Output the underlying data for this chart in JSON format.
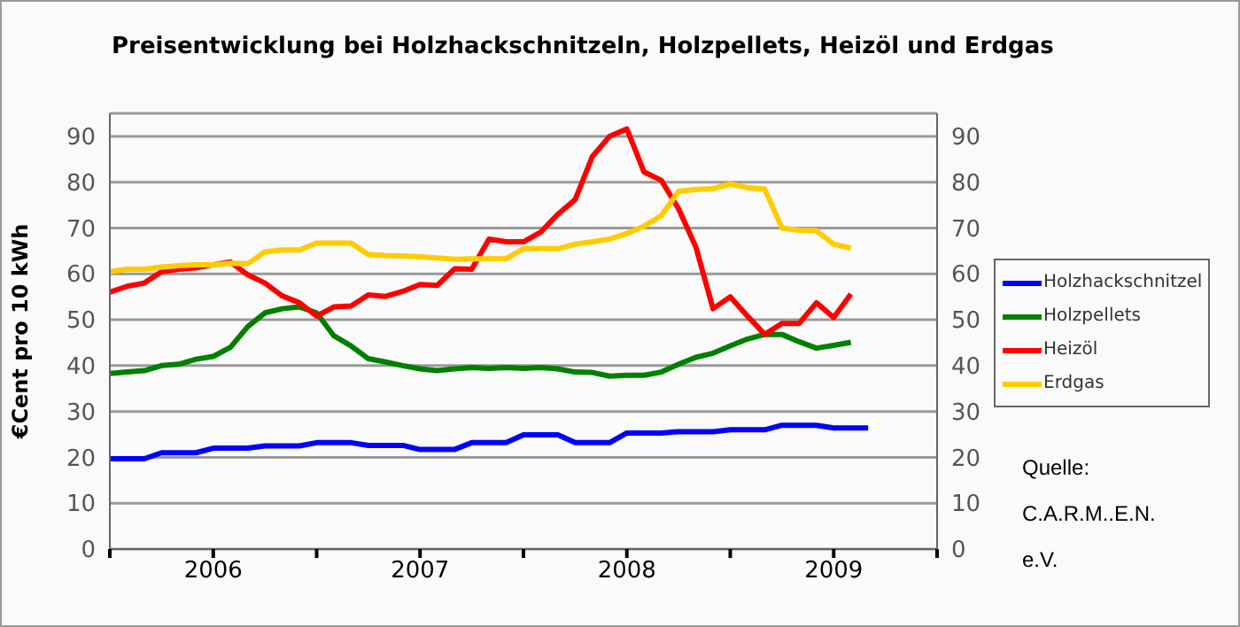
{
  "chart_data": {
    "type": "line",
    "title": "Preisentwicklung bei Holzhackschnitzeln, Holzpellets, Heizöl und Erdgas",
    "ylabel": "€Cent pro 10 kWh",
    "x": [
      "2006-01",
      "2006-02",
      "2006-03",
      "2006-04",
      "2006-05",
      "2006-06",
      "2006-07",
      "2006-08",
      "2006-09",
      "2006-10",
      "2006-11",
      "2006-12",
      "2007-01",
      "2007-02",
      "2007-03",
      "2007-04",
      "2007-05",
      "2007-06",
      "2007-07",
      "2007-08",
      "2007-09",
      "2007-10",
      "2007-11",
      "2007-12",
      "2008-01",
      "2008-02",
      "2008-03",
      "2008-04",
      "2008-05",
      "2008-06",
      "2008-07",
      "2008-08",
      "2008-09",
      "2008-10",
      "2008-11",
      "2008-12",
      "2009-01",
      "2009-02",
      "2009-03",
      "2009-04",
      "2009-05",
      "2009-06",
      "2009-07",
      "2009-08",
      "2009-09"
    ],
    "series": [
      {
        "name": "Holzhackschnitzel",
        "color": "#0000ff",
        "values": [
          19.7,
          19.7,
          19.7,
          21,
          21,
          21,
          22,
          22,
          22,
          22.5,
          22.5,
          22.5,
          23.2,
          23.2,
          23.2,
          22.6,
          22.6,
          22.6,
          21.7,
          21.7,
          21.7,
          23.2,
          23.2,
          23.2,
          24.9,
          24.9,
          24.9,
          23.2,
          23.2,
          23.2,
          25.3,
          25.3,
          25.3,
          25.6,
          25.6,
          25.6,
          26,
          26,
          26,
          27,
          27,
          27,
          26.4,
          26.4,
          26.4
        ]
      },
      {
        "name": "Holzpellets",
        "color": "#008000",
        "values": [
          38.3,
          38.6,
          38.9,
          40,
          40.3,
          41.4,
          42,
          44,
          48.5,
          51.5,
          52.4,
          52.8,
          51.5,
          46.5,
          44.3,
          41.5,
          40.8,
          40,
          39.3,
          38.9,
          39.3,
          39.6,
          39.4,
          39.6,
          39.4,
          39.6,
          39.3,
          38.6,
          38.5,
          37.7,
          37.9,
          37.9,
          38.6,
          40.3,
          41.8,
          42.7,
          44.3,
          45.8,
          46.8,
          46.8,
          45.2,
          43.8,
          44.4,
          45.1,
          null
        ]
      },
      {
        "name": "Heizöl",
        "color": "#ff0000",
        "values": [
          56,
          57.3,
          58,
          60.5,
          61,
          61.3,
          62,
          62.6,
          59.8,
          58,
          55.2,
          53.7,
          50.8,
          52.8,
          53,
          55.4,
          55.1,
          56.2,
          57.7,
          57.5,
          61.1,
          61,
          67.6,
          67,
          67,
          69.1,
          73,
          76.2,
          85.6,
          90,
          91.6,
          82.2,
          80.4,
          74.2,
          65.9,
          52.4,
          55,
          50.8,
          46.8,
          49.2,
          49.2,
          53.7,
          50.5,
          55.6,
          null
        ]
      },
      {
        "name": "Erdgas",
        "color": "#ffcc00",
        "values": [
          60.5,
          61,
          61,
          61.5,
          61.8,
          62,
          62,
          62.3,
          62.2,
          64.8,
          65.2,
          65.2,
          66.7,
          66.7,
          66.7,
          64.2,
          64,
          63.9,
          63.7,
          63.5,
          63.2,
          63.3,
          63.3,
          63.3,
          65.5,
          65.5,
          65.5,
          66.5,
          67,
          67.6,
          68.8,
          70.4,
          72.7,
          78,
          78.4,
          78.6,
          79.6,
          78.8,
          78.5,
          70,
          69.5,
          69.4,
          66.5,
          65.6,
          null
        ]
      }
    ],
    "xlim": [
      "2006-01-01",
      "2010-01-01"
    ],
    "xticks": [
      {
        "value": "2006-01-01",
        "label": null
      },
      {
        "value": "2006-07-01",
        "label": "2006"
      },
      {
        "value": "2007-01-01",
        "label": null
      },
      {
        "value": "2007-07-01",
        "label": "2007"
      },
      {
        "value": "2008-01-01",
        "label": null
      },
      {
        "value": "2008-07-01",
        "label": "2008"
      },
      {
        "value": "2009-01-01",
        "label": null
      },
      {
        "value": "2009-07-01",
        "label": "2009"
      },
      {
        "value": "2010-01-01",
        "label": null
      }
    ],
    "ylim": [
      0,
      95
    ],
    "yticks": [
      0,
      10,
      20,
      30,
      40,
      50,
      60,
      70,
      80,
      90
    ],
    "y2lim": [
      0,
      95
    ],
    "y2ticks": [
      0,
      10,
      20,
      30,
      40,
      50,
      60,
      70,
      80,
      90
    ],
    "grid": "y",
    "legend": "right",
    "marker": "none",
    "line_style": "solid",
    "annotations": [
      "Quelle:",
      "C.A.R.M..E.N.",
      "e.V."
    ]
  }
}
